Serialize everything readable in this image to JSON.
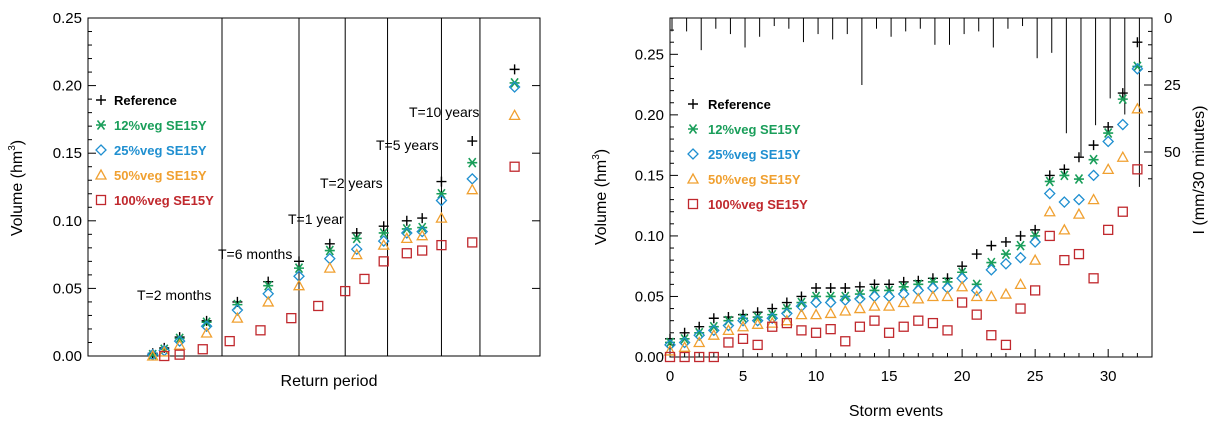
{
  "chart_data": [
    {
      "type": "scatter",
      "xlabel": "Return period",
      "ylabel": "Volume (hm³)",
      "ylim": [
        0,
        0.25
      ],
      "y_ticks": [
        "0.00",
        "0.05",
        "0.10",
        "0.15",
        "0.20",
        "0.25"
      ],
      "x_ticks_labeled": false,
      "annotations": [
        "T=2 months",
        "T=6 months",
        "T=1 year",
        "T=2 years",
        "T=5 years",
        "T=10 years"
      ],
      "legend_position": "left",
      "series": [
        {
          "name": "Reference",
          "marker": "plus",
          "color": "#000000",
          "points": [
            [
              0.96,
              0.212
            ],
            [
              0.85,
              0.159
            ],
            [
              0.77,
              0.129
            ],
            [
              0.72,
              0.102
            ],
            [
              0.68,
              0.1
            ],
            [
              0.62,
              0.096
            ],
            [
              0.55,
              0.091
            ],
            [
              0.48,
              0.083
            ],
            [
              0.4,
              0.07
            ],
            [
              0.32,
              0.055
            ],
            [
              0.24,
              0.04
            ],
            [
              0.16,
              0.026
            ],
            [
              0.09,
              0.014
            ],
            [
              0.05,
              0.006
            ],
            [
              0.02,
              0.002
            ]
          ]
        },
        {
          "name": "12%veg SE15Y",
          "marker": "asterisk",
          "color": "#1a9e5a",
          "points": [
            [
              0.96,
              0.202
            ],
            [
              0.85,
              0.143
            ],
            [
              0.77,
              0.12
            ],
            [
              0.72,
              0.095
            ],
            [
              0.68,
              0.094
            ],
            [
              0.62,
              0.091
            ],
            [
              0.55,
              0.087
            ],
            [
              0.48,
              0.078
            ],
            [
              0.4,
              0.065
            ],
            [
              0.32,
              0.052
            ],
            [
              0.24,
              0.038
            ],
            [
              0.16,
              0.025
            ],
            [
              0.09,
              0.013
            ],
            [
              0.05,
              0.005
            ],
            [
              0.02,
              0.001
            ]
          ]
        },
        {
          "name": "25%veg SE15Y",
          "marker": "diamond",
          "color": "#1f8fd0",
          "points": [
            [
              0.96,
              0.199
            ],
            [
              0.85,
              0.131
            ],
            [
              0.77,
              0.115
            ],
            [
              0.72,
              0.092
            ],
            [
              0.68,
              0.091
            ],
            [
              0.62,
              0.085
            ],
            [
              0.55,
              0.079
            ],
            [
              0.48,
              0.072
            ],
            [
              0.4,
              0.059
            ],
            [
              0.32,
              0.046
            ],
            [
              0.24,
              0.034
            ],
            [
              0.16,
              0.022
            ],
            [
              0.09,
              0.011
            ],
            [
              0.05,
              0.004
            ],
            [
              0.02,
              0.001
            ]
          ]
        },
        {
          "name": "50%veg SE15Y",
          "marker": "triangle",
          "color": "#f0a030",
          "points": [
            [
              0.96,
              0.178
            ],
            [
              0.85,
              0.123
            ],
            [
              0.77,
              0.102
            ],
            [
              0.72,
              0.089
            ],
            [
              0.68,
              0.087
            ],
            [
              0.62,
              0.082
            ],
            [
              0.55,
              0.075
            ],
            [
              0.48,
              0.065
            ],
            [
              0.4,
              0.052
            ],
            [
              0.32,
              0.04
            ],
            [
              0.24,
              0.028
            ],
            [
              0.16,
              0.017
            ],
            [
              0.09,
              0.008
            ],
            [
              0.05,
              0.003
            ],
            [
              0.02,
              0.0
            ]
          ]
        },
        {
          "name": "100%veg SE15Y",
          "marker": "square",
          "color": "#c0282d",
          "points": [
            [
              0.96,
              0.14
            ],
            [
              0.85,
              0.084
            ],
            [
              0.77,
              0.082
            ],
            [
              0.72,
              0.078
            ],
            [
              0.68,
              0.076
            ],
            [
              0.62,
              0.07
            ],
            [
              0.57,
              0.057
            ],
            [
              0.52,
              0.048
            ],
            [
              0.45,
              0.037
            ],
            [
              0.38,
              0.028
            ],
            [
              0.3,
              0.019
            ],
            [
              0.22,
              0.011
            ],
            [
              0.15,
              0.005
            ],
            [
              0.09,
              0.001
            ],
            [
              0.05,
              0.0
            ]
          ]
        }
      ]
    },
    {
      "type": "scatter",
      "xlabel": "Storm events",
      "ylabel": "Volume (hm³)",
      "y2label": "I (mm/30 minutes)",
      "xlim": [
        0,
        33
      ],
      "ylim": [
        0,
        0.28
      ],
      "x_ticks": [
        0,
        5,
        10,
        15,
        20,
        25,
        30
      ],
      "y_ticks": [
        "0.00",
        "0.05",
        "0.10",
        "0.15",
        "0.20",
        "0.25"
      ],
      "y2_ticks": [
        0,
        25,
        50
      ],
      "legend_position": "left",
      "rainfall_intensity_mm": [
        5,
        5,
        12,
        4,
        6,
        11,
        7,
        3,
        4,
        9,
        6,
        8,
        6,
        25,
        4,
        7,
        5,
        4,
        10,
        10,
        6,
        5,
        11,
        4,
        3,
        15,
        13,
        43,
        52,
        40,
        30,
        36,
        63
      ],
      "series": [
        {
          "name": "Reference",
          "marker": "plus",
          "color": "#000000",
          "x": [
            0,
            1,
            2,
            3,
            4,
            5,
            6,
            7,
            8,
            9,
            10,
            11,
            12,
            13,
            14,
            15,
            16,
            17,
            18,
            19,
            20,
            21,
            22,
            23,
            24,
            25,
            26,
            27,
            28,
            29,
            30,
            31,
            32
          ],
          "y": [
            0.015,
            0.02,
            0.025,
            0.032,
            0.033,
            0.035,
            0.037,
            0.04,
            0.045,
            0.05,
            0.057,
            0.057,
            0.057,
            0.058,
            0.06,
            0.06,
            0.062,
            0.063,
            0.065,
            0.065,
            0.075,
            0.085,
            0.092,
            0.095,
            0.1,
            0.105,
            0.15,
            0.155,
            0.165,
            0.175,
            0.19,
            0.218,
            0.26
          ]
        },
        {
          "name": "12%veg SE15Y",
          "marker": "asterisk",
          "color": "#1a9e5a",
          "x": [
            0,
            1,
            2,
            3,
            4,
            5,
            6,
            7,
            8,
            9,
            10,
            11,
            12,
            13,
            14,
            15,
            16,
            17,
            18,
            19,
            20,
            21,
            22,
            23,
            24,
            25,
            26,
            27,
            28,
            29,
            30,
            31,
            32
          ],
          "y": [
            0.012,
            0.015,
            0.02,
            0.025,
            0.03,
            0.032,
            0.033,
            0.035,
            0.04,
            0.045,
            0.05,
            0.05,
            0.05,
            0.052,
            0.055,
            0.055,
            0.058,
            0.06,
            0.062,
            0.062,
            0.07,
            0.06,
            0.078,
            0.085,
            0.092,
            0.1,
            0.145,
            0.15,
            0.147,
            0.163,
            0.185,
            0.213,
            0.24
          ]
        },
        {
          "name": "25%veg SE15Y",
          "marker": "diamond",
          "color": "#1f8fd0",
          "x": [
            0,
            1,
            2,
            3,
            4,
            5,
            6,
            7,
            8,
            9,
            10,
            11,
            12,
            13,
            14,
            15,
            16,
            17,
            18,
            19,
            20,
            21,
            22,
            23,
            24,
            25,
            26,
            27,
            28,
            29,
            30,
            31,
            32
          ],
          "y": [
            0.01,
            0.012,
            0.018,
            0.022,
            0.026,
            0.03,
            0.03,
            0.032,
            0.036,
            0.042,
            0.045,
            0.045,
            0.047,
            0.048,
            0.05,
            0.05,
            0.052,
            0.055,
            0.057,
            0.057,
            0.065,
            0.055,
            0.072,
            0.077,
            0.082,
            0.095,
            0.135,
            0.128,
            0.13,
            0.15,
            0.178,
            0.192,
            0.238
          ]
        },
        {
          "name": "50%veg SE15Y",
          "marker": "triangle",
          "color": "#f0a030",
          "x": [
            0,
            1,
            2,
            3,
            4,
            5,
            6,
            7,
            8,
            9,
            10,
            11,
            12,
            13,
            14,
            15,
            16,
            17,
            18,
            19,
            20,
            21,
            22,
            23,
            24,
            25,
            26,
            27,
            28,
            29,
            30,
            31,
            32
          ],
          "y": [
            0.005,
            0.008,
            0.012,
            0.018,
            0.022,
            0.025,
            0.027,
            0.028,
            0.03,
            0.035,
            0.035,
            0.036,
            0.038,
            0.04,
            0.042,
            0.042,
            0.045,
            0.048,
            0.05,
            0.05,
            0.058,
            0.05,
            0.05,
            0.052,
            0.06,
            0.08,
            0.12,
            0.105,
            0.118,
            0.13,
            0.155,
            0.165,
            0.205
          ]
        },
        {
          "name": "100%veg SE15Y",
          "marker": "square",
          "color": "#c0282d",
          "x": [
            0,
            1,
            2,
            3,
            4,
            5,
            6,
            7,
            8,
            9,
            10,
            11,
            12,
            13,
            14,
            15,
            16,
            17,
            18,
            19,
            20,
            21,
            22,
            23,
            24,
            25,
            26,
            27,
            28,
            29,
            30,
            31,
            32
          ],
          "y": [
            0.0,
            0.0,
            0.0,
            0.0,
            0.012,
            0.015,
            0.01,
            0.025,
            0.028,
            0.022,
            0.02,
            0.023,
            0.013,
            0.025,
            0.03,
            0.02,
            0.025,
            0.03,
            0.028,
            0.022,
            0.045,
            0.035,
            0.018,
            0.01,
            0.04,
            0.055,
            0.1,
            0.08,
            0.085,
            0.065,
            0.105,
            0.12,
            0.155
          ]
        }
      ]
    }
  ]
}
